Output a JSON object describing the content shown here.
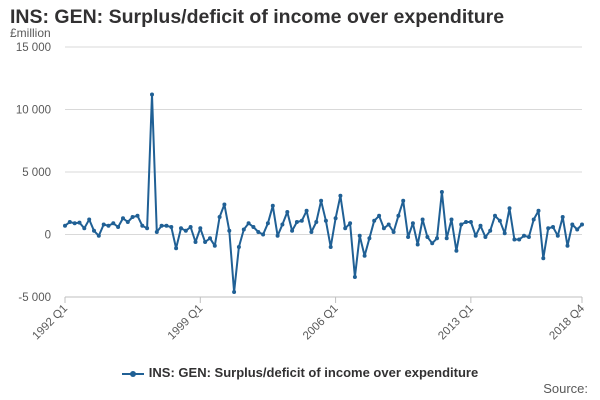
{
  "title": "INS: GEN: Surplus/deficit of income over expenditure",
  "unit_label": "£million",
  "source_label": "Source:",
  "colors": {
    "series": "#206095",
    "grid": "#d9d9d9",
    "text": "#323132"
  },
  "chart_data": {
    "type": "line",
    "title": "INS: GEN: Surplus/deficit of income over expenditure",
    "ylabel": "£million",
    "ylim": [
      -5000,
      15000
    ],
    "yticks": [
      -5000,
      0,
      5000,
      10000,
      15000
    ],
    "ytick_labels": [
      "-5 000",
      "0",
      "5 000",
      "10 000",
      "15 000"
    ],
    "xticks": [
      {
        "label": "1992 Q1",
        "index": 0
      },
      {
        "label": "1999 Q1",
        "index": 28
      },
      {
        "label": "2006 Q1",
        "index": 56
      },
      {
        "label": "2013 Q1",
        "index": 84
      },
      {
        "label": "2018 Q4",
        "index": 107
      }
    ],
    "grid": true,
    "legend_position": "bottom",
    "series": [
      {
        "name": "INS: GEN: Surplus/deficit of income over expenditure",
        "start": "1992 Q1",
        "end": "2018 Q4",
        "values": [
          700,
          1000,
          900,
          950,
          500,
          1200,
          300,
          -100,
          800,
          700,
          900,
          600,
          1300,
          1000,
          1400,
          1500,
          700,
          500,
          11200,
          200,
          700,
          700,
          600,
          -1100,
          500,
          300,
          600,
          -600,
          500,
          -600,
          -300,
          -900,
          1400,
          2400,
          300,
          -4600,
          -1000,
          400,
          900,
          600,
          200,
          0,
          900,
          2300,
          -100,
          800,
          1800,
          300,
          1000,
          1100,
          1900,
          200,
          1000,
          2700,
          1100,
          -1000,
          1300,
          3100,
          500,
          900,
          -3400,
          -100,
          -1700,
          -300,
          1100,
          1500,
          500,
          800,
          200,
          1500,
          2700,
          -200,
          900,
          -800,
          1200,
          -200,
          -700,
          -300,
          3400,
          -300,
          1200,
          -1300,
          800,
          1000,
          1000,
          -100,
          700,
          -200,
          300,
          1500,
          1100,
          100,
          2100,
          -400,
          -400,
          -100,
          -200,
          1200,
          1900,
          -1900,
          500,
          600,
          -100,
          1400,
          -900,
          800,
          400,
          800
        ]
      }
    ]
  }
}
